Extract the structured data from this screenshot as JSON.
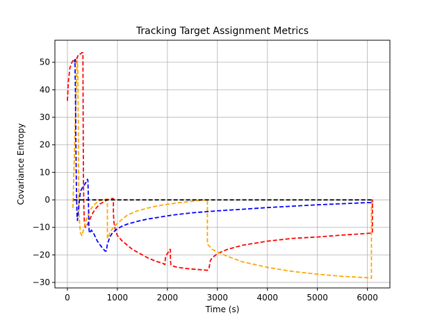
{
  "chart_data": {
    "type": "line",
    "title": "Tracking Target Assignment Metrics",
    "xlabel": "Time (s)",
    "ylabel": "Covariance Entropy",
    "xlim": [
      -250,
      6450
    ],
    "ylim": [
      -32,
      58
    ],
    "xticks": [
      0,
      1000,
      2000,
      3000,
      4000,
      5000,
      6000
    ],
    "xtick_labels": [
      "0",
      "1000",
      "2000",
      "3000",
      "4000",
      "5000",
      "6000"
    ],
    "yticks": [
      -30,
      -20,
      -10,
      0,
      10,
      20,
      30,
      40,
      50
    ],
    "ytick_labels": [
      "−30",
      "−20",
      "−10",
      "0",
      "10",
      "20",
      "30",
      "40",
      "50"
    ],
    "grid": true,
    "line_style": "dashed",
    "series": [
      {
        "color": "#ff0000",
        "x": [
          0,
          20,
          50,
          90,
          130,
          160,
          170,
          200,
          230,
          260,
          290,
          310,
          320,
          330,
          340,
          360,
          400,
          450,
          500,
          550,
          600,
          650,
          700,
          750,
          800,
          850,
          900,
          920,
          920,
          930,
          960,
          1000,
          1100,
          1200,
          1300,
          1400,
          1500,
          1600,
          1700,
          1800,
          1900,
          1950,
          1960,
          1980,
          2000,
          2020,
          2050,
          2060,
          2060,
          2070,
          2100,
          2200,
          2400,
          2600,
          2800,
          2830,
          2840,
          2860,
          2900,
          3000,
          3200,
          3500,
          4000,
          4500,
          5000,
          5500,
          6000,
          6100,
          6100,
          6100
        ],
        "y": [
          36,
          43,
          48,
          50,
          51,
          51,
          50,
          52,
          53,
          53,
          53.5,
          53.5,
          8,
          -3,
          -8,
          -10,
          -9,
          -7,
          -5,
          -3.5,
          -2.5,
          -1.5,
          -1,
          -0.5,
          0,
          0.3,
          0.5,
          0.5,
          -5,
          -8,
          -11,
          -13,
          -15,
          -16.5,
          -18,
          -19,
          -20,
          -21,
          -21.8,
          -22.5,
          -23,
          -23.5,
          -21,
          -20,
          -19.5,
          -19,
          -18,
          -18,
          -22,
          -23.5,
          -24,
          -24.5,
          -25,
          -25.3,
          -25.6,
          -25,
          -24,
          -22,
          -21,
          -19.5,
          -18,
          -16.5,
          -15,
          -14,
          -13.5,
          -12.8,
          -12.2,
          -12,
          0,
          -3
        ]
      },
      {
        "color": "#ffa500",
        "x": [
          110,
          130,
          160,
          190,
          200,
          210,
          230,
          260,
          290,
          320,
          350,
          400,
          450,
          500,
          550,
          600,
          650,
          700,
          750,
          780,
          800,
          800,
          820,
          850,
          900,
          1000,
          1100,
          1200,
          1400,
          1600,
          1800,
          2000,
          2200,
          2400,
          2600,
          2700,
          2780,
          2800,
          2800,
          2820,
          2850,
          2900,
          3000,
          3200,
          3500,
          4000,
          4500,
          5000,
          5500,
          6000,
          6080,
          6080
        ],
        "y": [
          -3,
          10,
          30,
          49,
          50.5,
          45,
          -5,
          -12,
          -13,
          -11,
          -9,
          -6,
          -4,
          -2.5,
          -1.5,
          -0.8,
          -0.3,
          0,
          0.2,
          0.3,
          0.3,
          -14,
          -13.5,
          -12,
          -10.5,
          -8.5,
          -7,
          -5.5,
          -4,
          -3,
          -2.2,
          -1.6,
          -1.1,
          -0.7,
          -0.3,
          -0.1,
          0,
          0.2,
          -16,
          -16.5,
          -17,
          -18,
          -19,
          -20.5,
          -22.5,
          -24.5,
          -26,
          -27,
          -27.8,
          -28.3,
          -28.5,
          0
        ]
      },
      {
        "color": "#0000ff",
        "x": [
          140,
          150,
          160,
          170,
          180,
          190,
          200,
          230,
          260,
          300,
          330,
          360,
          390,
          400,
          410,
          420,
          430,
          440,
          450,
          480,
          520,
          600,
          700,
          760,
          780,
          800,
          820,
          850,
          900,
          1000,
          1100,
          1200,
          1400,
          1600,
          1800,
          2000,
          2200,
          2500,
          3000,
          3500,
          4000,
          4500,
          5000,
          5500,
          6000,
          6100
        ],
        "y": [
          50,
          51,
          40,
          20,
          5,
          -5,
          -7.5,
          -2,
          3,
          4.5,
          5.2,
          6,
          7,
          7.5,
          7,
          0,
          -10,
          -12,
          -12,
          -11,
          -12,
          -15,
          -17.5,
          -18.7,
          -18.5,
          -16,
          -15,
          -13.5,
          -12,
          -10.5,
          -9.5,
          -8.8,
          -7.8,
          -7,
          -6.4,
          -5.8,
          -5.3,
          -4.7,
          -4,
          -3.4,
          -2.8,
          -2.3,
          -1.8,
          -1.4,
          -1,
          -1
        ]
      },
      {
        "color": "#000000",
        "x": [
          120,
          6100
        ],
        "y": [
          0,
          0
        ]
      }
    ]
  }
}
